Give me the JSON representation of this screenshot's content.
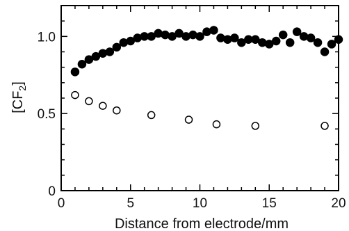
{
  "chart_data": {
    "type": "scatter",
    "xlabel": "Distance from electrode/mm",
    "ylabel_main": "[CF",
    "ylabel_sub": "2",
    "ylabel_close": "]",
    "xlim": [
      0,
      20
    ],
    "ylim": [
      0,
      1.2
    ],
    "x_ticks": [
      0,
      5,
      10,
      15,
      20
    ],
    "x_tick_labels": [
      "0",
      "5",
      "10",
      "15",
      "20"
    ],
    "y_ticks": [
      0,
      0.5,
      1.0
    ],
    "y_tick_labels": [
      "0",
      "0.5",
      "1.0"
    ],
    "grid": false,
    "legend": "none",
    "series": [
      {
        "marker": "filled-circle",
        "color": "#000000",
        "x": [
          1.0,
          1.5,
          2.0,
          2.5,
          3.0,
          3.5,
          4.0,
          4.5,
          5.0,
          5.5,
          6.0,
          6.5,
          7.0,
          7.5,
          8.0,
          8.5,
          9.0,
          9.5,
          10.0,
          10.5,
          11.0,
          11.5,
          12.0,
          12.5,
          13.0,
          13.5,
          14.0,
          14.5,
          15.0,
          15.5,
          16.0,
          16.5,
          17.0,
          17.5,
          18.0,
          18.5,
          19.0,
          19.5,
          20.0
        ],
        "y": [
          0.77,
          0.82,
          0.85,
          0.87,
          0.89,
          0.9,
          0.93,
          0.96,
          0.97,
          0.99,
          1.0,
          1.0,
          1.02,
          1.01,
          1.0,
          1.02,
          1.0,
          1.01,
          1.0,
          1.03,
          1.04,
          0.99,
          0.98,
          0.99,
          0.96,
          0.98,
          0.98,
          0.96,
          0.95,
          0.97,
          1.01,
          0.96,
          1.03,
          1.0,
          0.99,
          0.96,
          0.9,
          0.95,
          0.98
        ]
      },
      {
        "marker": "open-circle",
        "color": "#000000",
        "x": [
          1.0,
          2.0,
          3.0,
          4.0,
          6.5,
          9.2,
          11.2,
          14.0,
          19.0
        ],
        "y": [
          0.62,
          0.58,
          0.55,
          0.52,
          0.49,
          0.46,
          0.43,
          0.42,
          0.42
        ]
      }
    ]
  }
}
